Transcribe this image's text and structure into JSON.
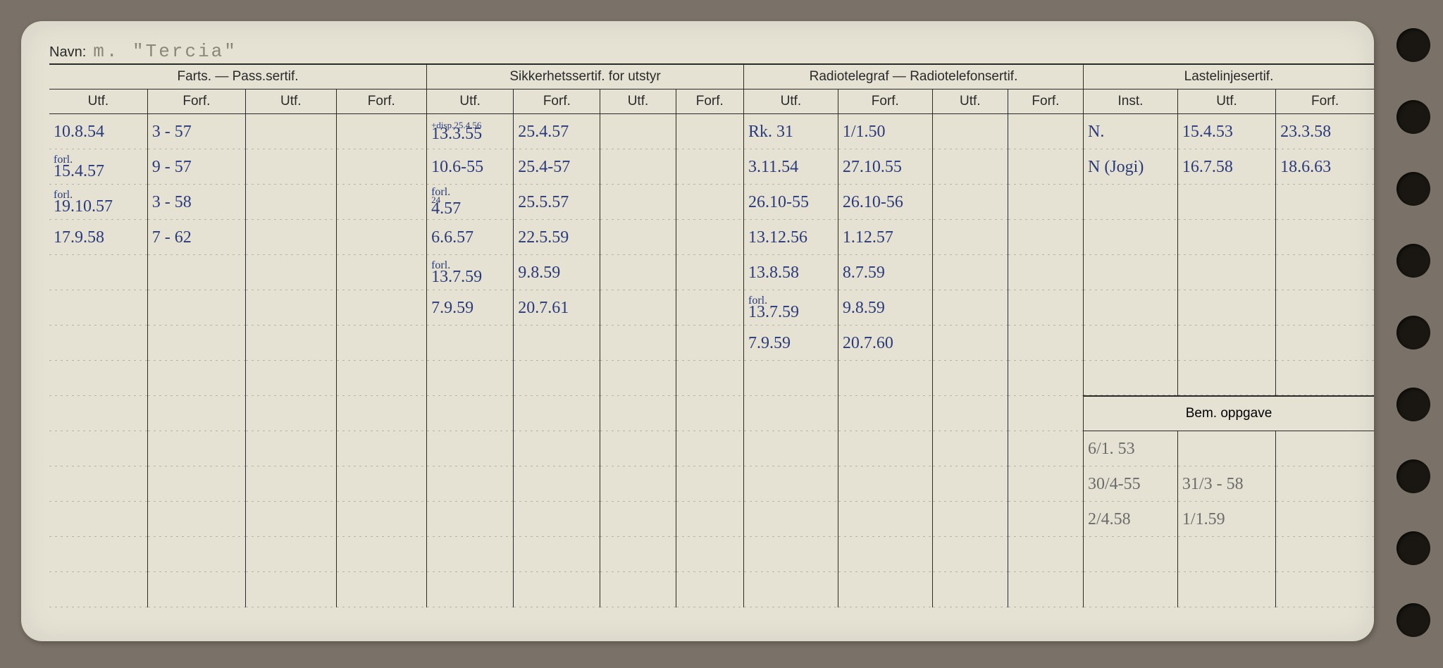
{
  "labels": {
    "navn": "Navn:",
    "navn_value": "m. \"Tercia\"",
    "group_farts": "Farts. — Pass.sertif.",
    "group_sikkerhet": "Sikkerhetssertif. for utstyr",
    "group_radio": "Radiotelegraf — Radiotelefonsertif.",
    "group_laste": "Lastelinjesertif.",
    "utf": "Utf.",
    "forf": "Forf.",
    "inst": "Inst.",
    "bem": "Bem. oppgave"
  },
  "colors": {
    "paper": "#e5e2d4",
    "ink_blue": "#2a3a7a",
    "ink_pencil": "#6b6b6b",
    "print": "#2a2a2a",
    "background": "#7a7268"
  },
  "rows": [
    {
      "farts_utf": "10.8.54",
      "farts_forf": "3 - 57",
      "sikk_utf": "13.3.55",
      "sikk_note": "+disp.25.4.56",
      "sikk_forf": "25.4.57",
      "radio_utf": "Rk. 31",
      "radio_forf": "1/1.50",
      "laste_inst": "N.",
      "laste_utf": "15.4.53",
      "laste_forf": "23.3.58"
    },
    {
      "farts_pre": "forl.",
      "farts_utf": "15.4.57",
      "farts_forf": "9 - 57",
      "sikk_utf": "10.6-55",
      "sikk_forf": "25.4-57",
      "radio_utf": "3.11.54",
      "radio_forf": "27.10.55",
      "laste_inst": "N (Jogi)",
      "laste_utf": "16.7.58",
      "laste_forf": "18.6.63"
    },
    {
      "farts_pre": "forl.",
      "farts_utf": "19.10.57",
      "farts_forf": "3 - 58",
      "sikk_pre": "forl.",
      "sikk_note": "24",
      "sikk_utf": "4.57",
      "sikk_forf": "25.5.57",
      "radio_utf": "26.10-55",
      "radio_forf": "26.10-56"
    },
    {
      "farts_utf": "17.9.58",
      "farts_forf": "7 - 62",
      "sikk_utf": "6.6.57",
      "sikk_forf": "22.5.59",
      "radio_utf": "13.12.56",
      "radio_forf": "1.12.57"
    },
    {
      "sikk_pre": "forl.",
      "sikk_utf": "13.7.59",
      "sikk_forf": "9.8.59",
      "radio_utf": "13.8.58",
      "radio_forf": "8.7.59"
    },
    {
      "sikk_utf": "7.9.59",
      "sikk_forf": "20.7.61",
      "radio_pre": "forl.",
      "radio_utf": "13.7.59",
      "radio_forf": "9.8.59"
    },
    {
      "radio_utf": "7.9.59",
      "radio_forf": "20.7.60"
    },
    {}
  ],
  "bem_rows": [
    {
      "c1": "6/1. 53",
      "c2": "",
      "pencil": true
    },
    {
      "c1": "30/4-55",
      "c2": "31/3 - 58",
      "pencil": true
    },
    {
      "c1": "2/4.58",
      "c2": "1/1.59",
      "pencil": true
    }
  ]
}
